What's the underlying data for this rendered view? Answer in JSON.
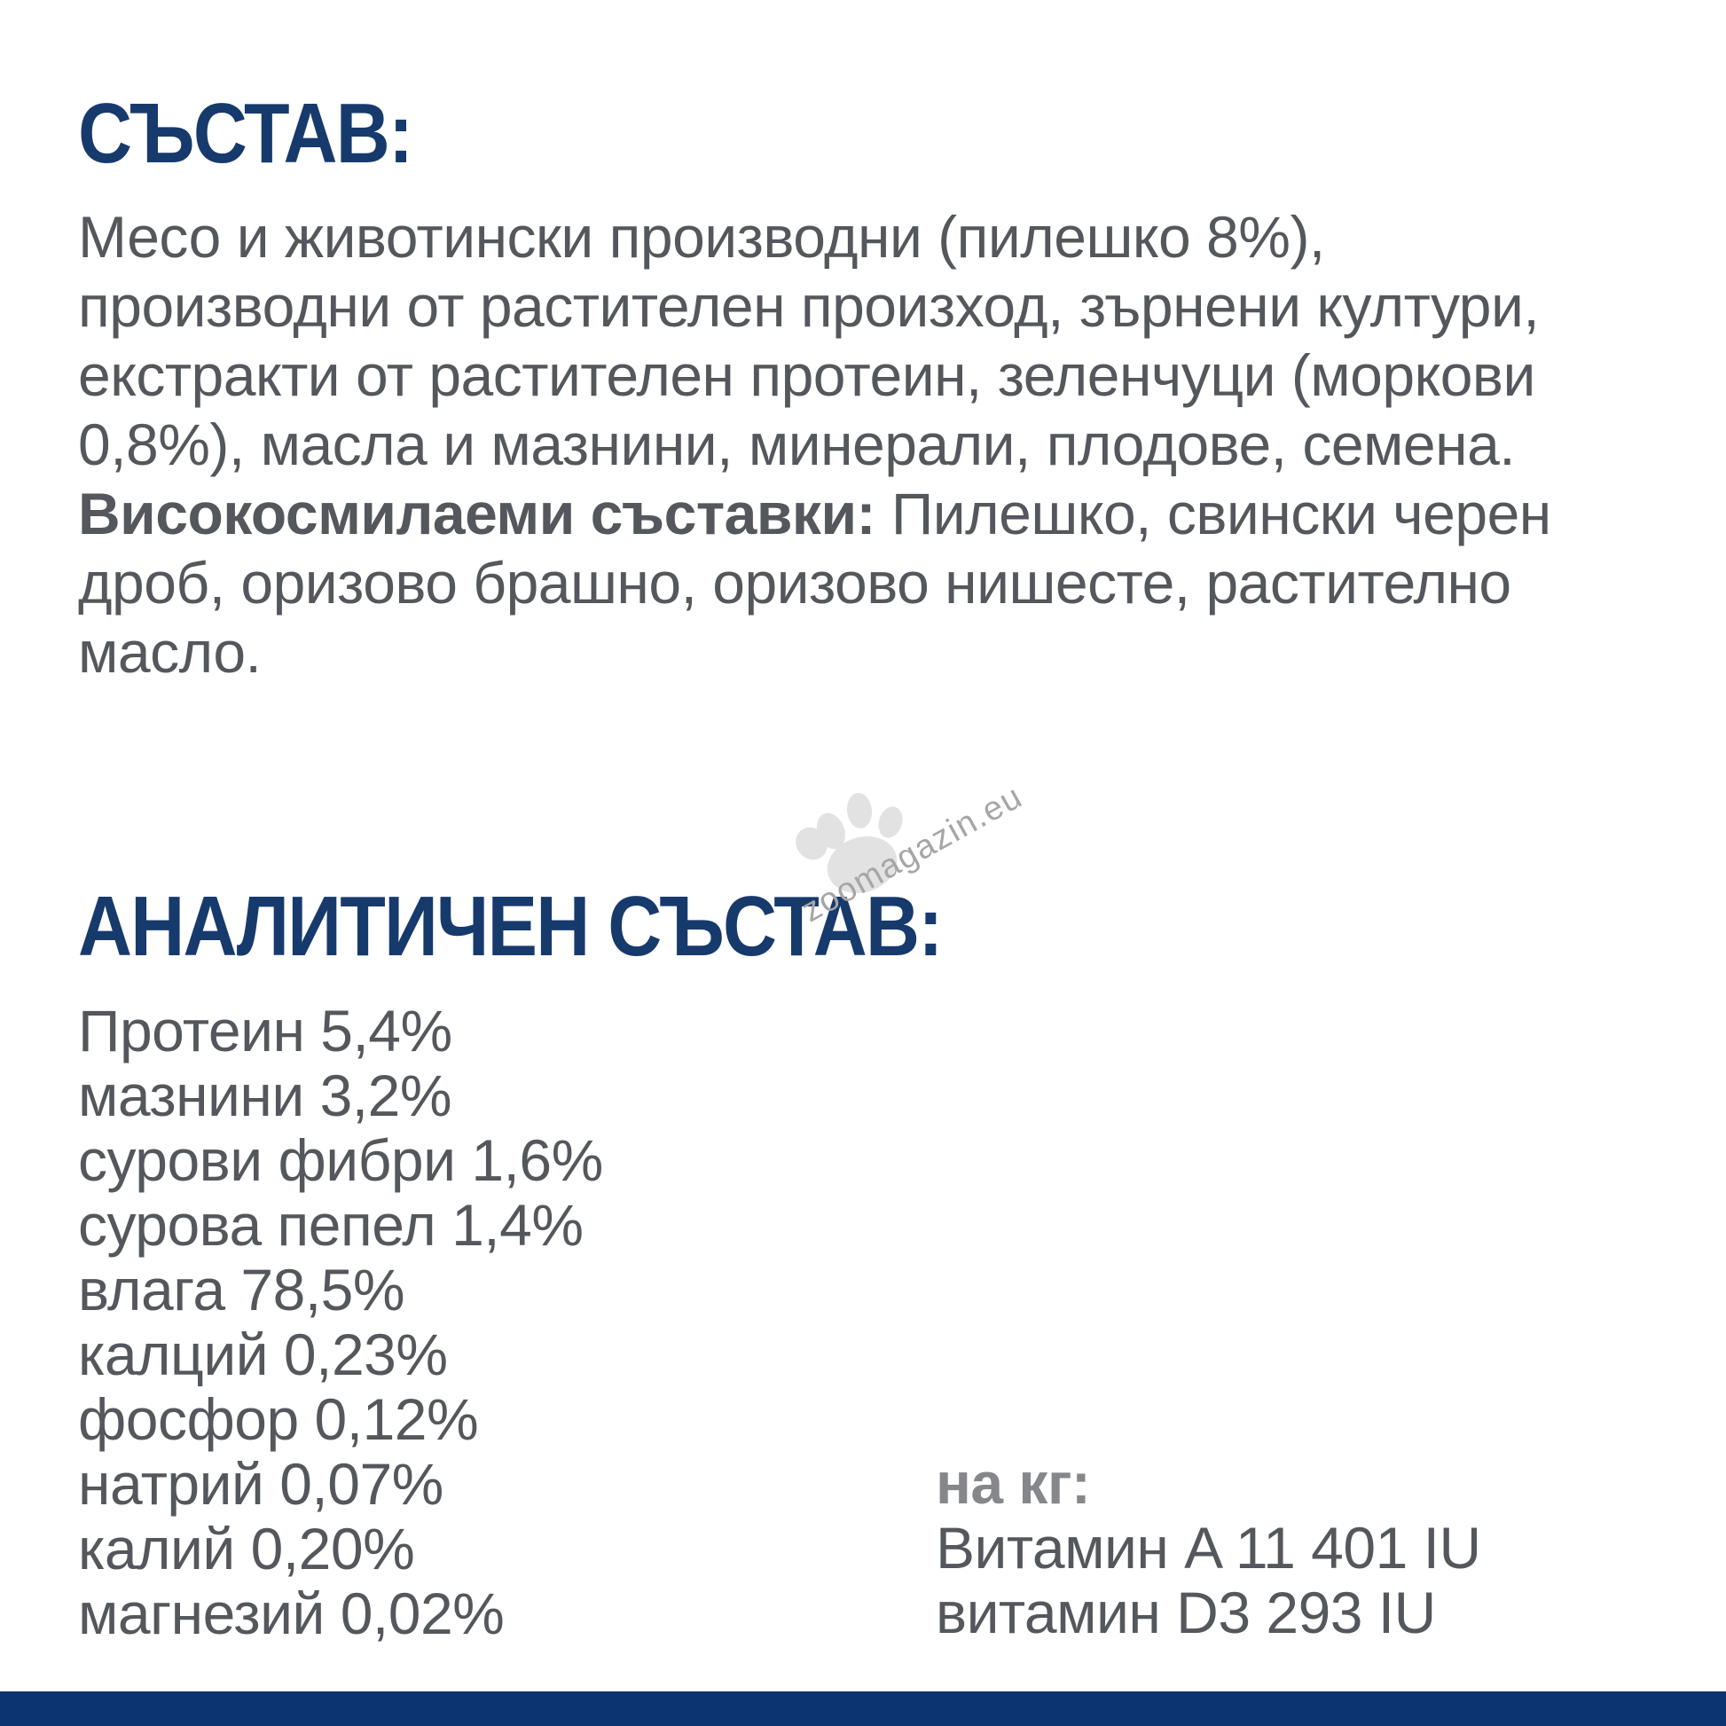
{
  "page": {
    "background": "#ffffff",
    "accent_navy": "#173a6d",
    "bottom_bar_color": "#0c3470",
    "body_text_color": "#54575c",
    "muted_label_color": "#85878a"
  },
  "composition": {
    "heading": "СЪСТАВ:",
    "lines": [
      {
        "text": "Месо и животински производни (пилешко 8%),"
      },
      {
        "text": "производни от растителен произход, зърнени култури,"
      },
      {
        "text": "екстракти от растителен протеин, зеленчуци (моркови"
      },
      {
        "text": "0,8%), масла и мазнини, минерали, плодове, семена."
      },
      {
        "bold": "Високосмилаеми съставки:",
        "text": " Пилешко, свински черен"
      },
      {
        "text": "дроб, оризово брашно, оризово нишесте, растително"
      },
      {
        "text": "масло."
      }
    ]
  },
  "analytical": {
    "heading": "АНАЛИТИЧЕН СЪСТАВ:",
    "items": [
      "Протеин 5,4%",
      "мазнини 3,2%",
      "сурови фибри 1,6%",
      "сурова пепел 1,4%",
      "влага 78,5%",
      "калций 0,23%",
      "фосфор 0,12%",
      "натрий 0,07%",
      "калий 0,20%",
      "магнезий 0,02%"
    ]
  },
  "per_kg": {
    "label": "на кг:",
    "lines": [
      "Витамин A 11 401 IU",
      "витамин D3 293 IU"
    ]
  },
  "watermark": {
    "text": "zoomagazin.eu",
    "icon": "paw-print",
    "text_color": "#a6a6a6",
    "paw_color": "#e2e2e2"
  }
}
